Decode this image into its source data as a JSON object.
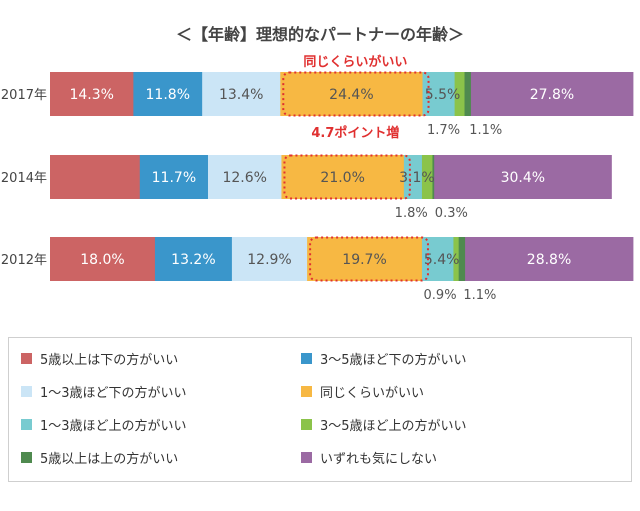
{
  "chart_data": {
    "type": "bar",
    "orientation": "horizontal",
    "stacked": true,
    "normalized_to_100": true,
    "title": "＜【年齢】理想的なパートナーの年齢＞",
    "categories": [
      "2017年",
      "2014年",
      "2012年"
    ],
    "series": [
      {
        "name": "5歳以上は下の方がいい",
        "color": "#cc6464",
        "values": [
          14.3,
          15.4,
          18.0
        ],
        "labels": [
          "14.3%",
          "",
          "18.0%"
        ]
      },
      {
        "name": "3〜5歳ほど下の方がいい",
        "color": "#3a96cb",
        "values": [
          11.8,
          11.7,
          13.2
        ],
        "labels": [
          "11.8%",
          "11.7%",
          "13.2%"
        ]
      },
      {
        "name": "1〜3歳ほど下の方がいい",
        "color": "#cbe5f6",
        "values": [
          13.4,
          12.6,
          12.9
        ],
        "labels": [
          "13.4%",
          "12.6%",
          "12.9%"
        ]
      },
      {
        "name": "同じくらいがいい",
        "color": "#f7b843",
        "values": [
          24.4,
          21.0,
          19.7
        ],
        "labels": [
          "24.4%",
          "21.0%",
          "19.7%"
        ]
      },
      {
        "name": "1〜3歳ほど上の方がいい",
        "color": "#78cbd0",
        "values": [
          5.5,
          3.1,
          5.4
        ],
        "labels": [
          "5.5%",
          "3.1%",
          "5.4%"
        ]
      },
      {
        "name": "3〜5歳ほど上の方がいい",
        "color": "#8bc34a",
        "values": [
          1.7,
          1.8,
          0.9
        ],
        "labels": [
          "1.7%",
          "1.8%",
          "0.9%"
        ]
      },
      {
        "name": "5歳以上は上の方がいい",
        "color": "#4f8a4f",
        "values": [
          1.1,
          0.3,
          1.1
        ],
        "labels": [
          "1.1%",
          "0.3%",
          "1.1%"
        ]
      },
      {
        "name": "いずれも気にしない",
        "color": "#9b6aa3",
        "values": [
          27.8,
          30.4,
          28.8
        ],
        "labels": [
          "27.8%",
          "30.4%",
          "28.8%"
        ]
      }
    ],
    "annotations": [
      {
        "text": "同じくらいがいい",
        "color": "#e03030"
      },
      {
        "text": "4.7ポイント増",
        "color": "#e03030"
      }
    ],
    "below_labels": [
      [
        "1.7%",
        "1.1%"
      ],
      [
        "1.8%",
        "0.3%"
      ],
      [
        "0.9%",
        "1.1%"
      ]
    ],
    "xlim": [
      0,
      100
    ],
    "legend_position": "bottom"
  }
}
